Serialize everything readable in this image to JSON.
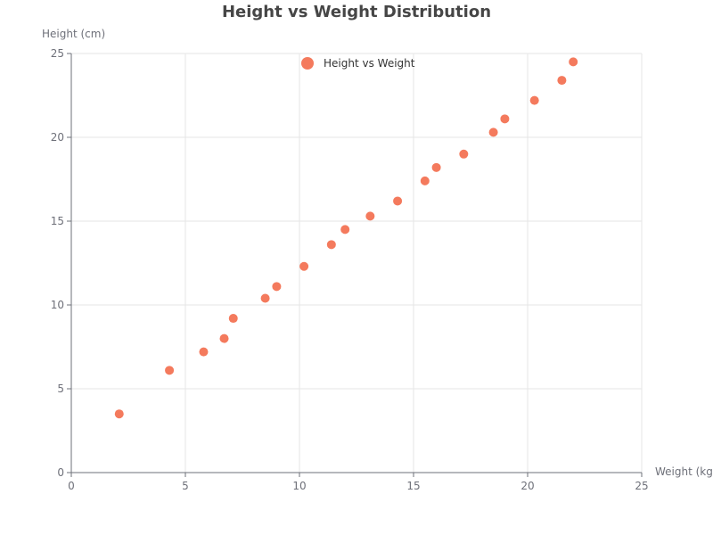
{
  "chart_data": {
    "type": "scatter",
    "title": "Height vs Weight Distribution",
    "xlabel": "Weight (kg)",
    "ylabel": "Height (cm)",
    "xlim": [
      0,
      25
    ],
    "ylim": [
      0,
      25
    ],
    "xticks": [
      "0",
      "5",
      "10",
      "15",
      "20",
      "25"
    ],
    "yticks": [
      "0",
      "5",
      "10",
      "15",
      "20",
      "25"
    ],
    "grid": true,
    "legend_position": "top-center",
    "series": [
      {
        "name": "Height vs Weight",
        "color": "#f47a5d",
        "x": [
          2.1,
          4.3,
          5.8,
          6.7,
          7.1,
          8.5,
          9.0,
          10.2,
          11.4,
          12.0,
          13.1,
          14.3,
          15.5,
          16.0,
          17.2,
          18.5,
          19.0,
          20.3,
          21.5,
          22.0
        ],
        "y": [
          3.5,
          6.1,
          7.2,
          8.0,
          9.2,
          10.4,
          11.1,
          12.3,
          13.6,
          14.5,
          15.3,
          16.2,
          17.4,
          18.2,
          19.0,
          20.3,
          21.1,
          22.2,
          23.4,
          24.5
        ]
      }
    ]
  }
}
